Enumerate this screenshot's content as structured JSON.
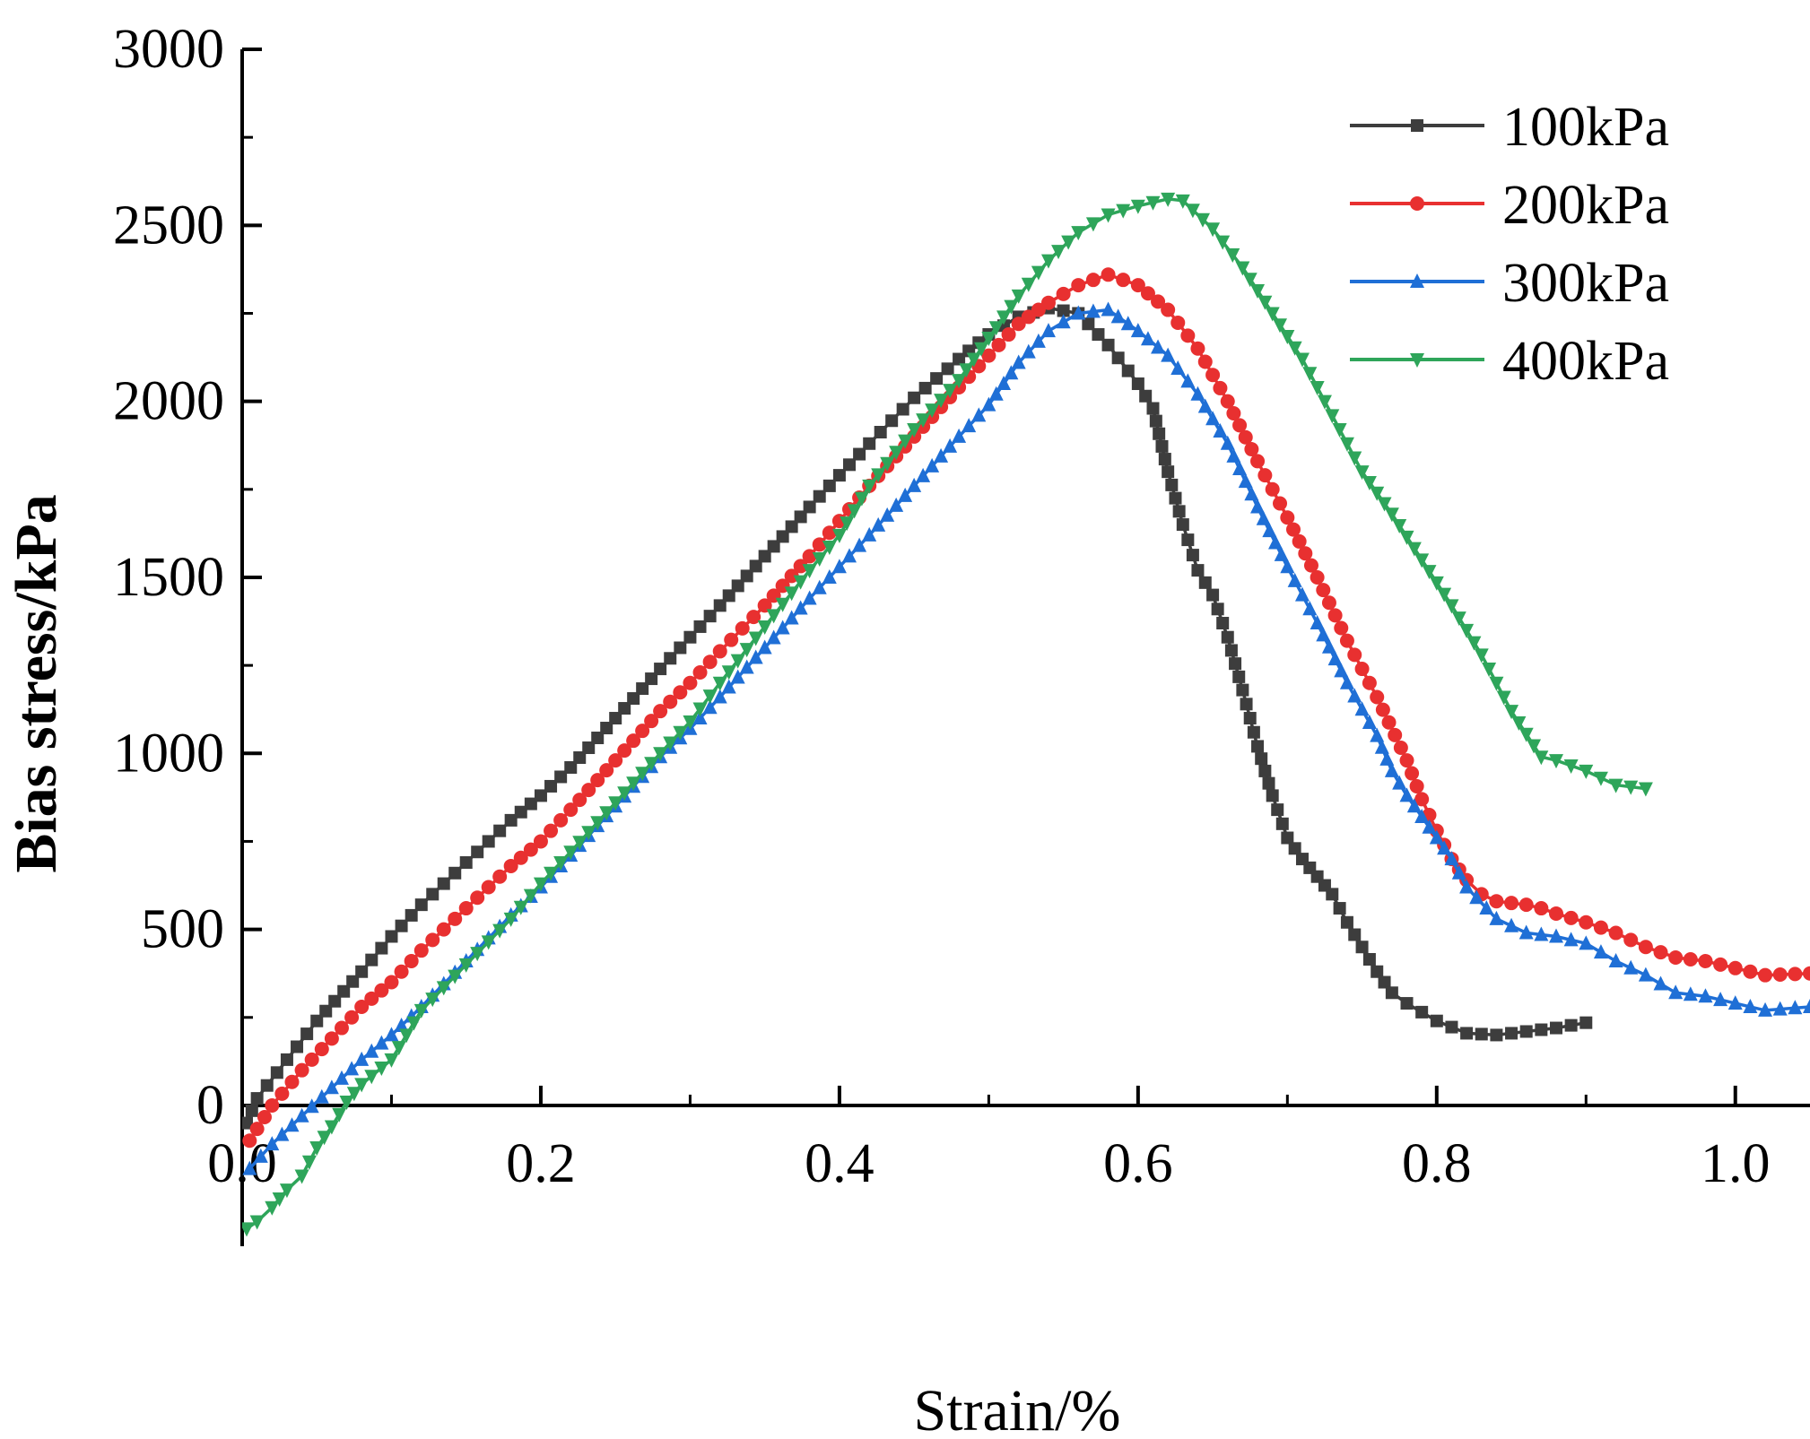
{
  "chart_data": {
    "type": "line",
    "title": "",
    "xlabel": "Strain/%",
    "ylabel": "Bias stress/kPa",
    "xlim": [
      0,
      1.05
    ],
    "ylim": [
      -400,
      3000
    ],
    "x_ticks": [
      0.0,
      0.2,
      0.4,
      0.6,
      0.8,
      1.0
    ],
    "x_tick_labels": [
      "0.0",
      "0.2",
      "0.4",
      "0.6",
      "0.8",
      "1.0"
    ],
    "y_ticks": [
      0,
      500,
      1000,
      1500,
      2000,
      2500,
      3000
    ],
    "y_tick_labels": [
      "0",
      "500",
      "1000",
      "1500",
      "2000",
      "2500",
      "3000"
    ],
    "grid": false,
    "legend_position": "top-right",
    "series": [
      {
        "name": "100kPa",
        "color": "#3d3d3d",
        "marker": "square",
        "x": [
          0.003,
          0.01,
          0.03,
          0.05,
          0.08,
          0.1,
          0.12,
          0.15,
          0.18,
          0.2,
          0.22,
          0.25,
          0.28,
          0.3,
          0.32,
          0.35,
          0.38,
          0.4,
          0.42,
          0.45,
          0.48,
          0.5,
          0.52,
          0.54,
          0.56,
          0.58,
          0.6,
          0.61,
          0.62,
          0.63,
          0.64,
          0.65,
          0.66,
          0.67,
          0.68,
          0.69,
          0.7,
          0.71,
          0.72,
          0.73,
          0.74,
          0.75,
          0.76,
          0.77,
          0.78,
          0.8,
          0.82,
          0.84,
          0.86,
          0.88,
          0.9
        ],
        "y": [
          -50,
          20,
          130,
          240,
          380,
          480,
          570,
          690,
          810,
          880,
          960,
          1100,
          1240,
          1330,
          1420,
          1560,
          1700,
          1790,
          1880,
          2010,
          2120,
          2190,
          2240,
          2265,
          2250,
          2160,
          2050,
          1980,
          1800,
          1650,
          1520,
          1450,
          1330,
          1180,
          1020,
          880,
          760,
          700,
          650,
          600,
          520,
          450,
          380,
          320,
          290,
          240,
          205,
          200,
          210,
          220,
          235
        ]
      },
      {
        "name": "200kPa",
        "color": "#e83030",
        "marker": "circle",
        "x": [
          0.005,
          0.02,
          0.04,
          0.06,
          0.08,
          0.1,
          0.12,
          0.15,
          0.18,
          0.2,
          0.22,
          0.25,
          0.28,
          0.3,
          0.32,
          0.35,
          0.38,
          0.4,
          0.42,
          0.45,
          0.48,
          0.5,
          0.52,
          0.54,
          0.56,
          0.58,
          0.6,
          0.62,
          0.64,
          0.66,
          0.68,
          0.7,
          0.72,
          0.74,
          0.76,
          0.78,
          0.79,
          0.8,
          0.81,
          0.82,
          0.83,
          0.84,
          0.85,
          0.86,
          0.87,
          0.88,
          0.9,
          0.92,
          0.94,
          0.96,
          0.98,
          1.0,
          1.02,
          1.05
        ],
        "y": [
          -100,
          0,
          100,
          190,
          280,
          350,
          440,
          560,
          680,
          750,
          840,
          980,
          1120,
          1200,
          1290,
          1420,
          1560,
          1660,
          1760,
          1900,
          2040,
          2130,
          2220,
          2280,
          2330,
          2360,
          2330,
          2260,
          2150,
          2000,
          1830,
          1670,
          1500,
          1320,
          1160,
          980,
          870,
          780,
          700,
          640,
          600,
          580,
          575,
          570,
          560,
          545,
          520,
          490,
          450,
          420,
          410,
          390,
          370,
          375
        ]
      },
      {
        "name": "300kPa",
        "color": "#1f6fd6",
        "marker": "triangle-up",
        "x": [
          0.005,
          0.02,
          0.04,
          0.06,
          0.08,
          0.1,
          0.12,
          0.15,
          0.18,
          0.2,
          0.22,
          0.25,
          0.28,
          0.3,
          0.32,
          0.35,
          0.38,
          0.4,
          0.42,
          0.45,
          0.48,
          0.5,
          0.52,
          0.54,
          0.56,
          0.58,
          0.6,
          0.62,
          0.64,
          0.66,
          0.68,
          0.7,
          0.72,
          0.74,
          0.76,
          0.77,
          0.78,
          0.79,
          0.8,
          0.81,
          0.82,
          0.84,
          0.86,
          0.88,
          0.9,
          0.92,
          0.94,
          0.96,
          0.98,
          1.0,
          1.02,
          1.05
        ],
        "y": [
          -180,
          -110,
          -30,
          50,
          130,
          200,
          280,
          410,
          540,
          620,
          710,
          850,
          990,
          1070,
          1160,
          1300,
          1440,
          1530,
          1620,
          1760,
          1900,
          1990,
          2110,
          2200,
          2250,
          2260,
          2200,
          2130,
          2020,
          1880,
          1700,
          1530,
          1370,
          1200,
          1050,
          950,
          880,
          820,
          760,
          700,
          620,
          530,
          490,
          480,
          460,
          410,
          370,
          320,
          310,
          290,
          270,
          280
        ]
      },
      {
        "name": "400kPa",
        "color": "#2ea55a",
        "marker": "triangle-down",
        "x": [
          0.003,
          0.01,
          0.02,
          0.03,
          0.04,
          0.05,
          0.06,
          0.07,
          0.08,
          0.1,
          0.12,
          0.15,
          0.18,
          0.2,
          0.22,
          0.25,
          0.28,
          0.3,
          0.32,
          0.35,
          0.38,
          0.4,
          0.42,
          0.45,
          0.48,
          0.5,
          0.52,
          0.54,
          0.56,
          0.58,
          0.6,
          0.62,
          0.63,
          0.65,
          0.67,
          0.69,
          0.71,
          0.73,
          0.75,
          0.77,
          0.79,
          0.81,
          0.83,
          0.85,
          0.87,
          0.88,
          0.9,
          0.92,
          0.94
        ],
        "y": [
          -350,
          -330,
          -290,
          -240,
          -200,
          -120,
          -60,
          10,
          60,
          130,
          270,
          400,
          530,
          630,
          720,
          860,
          1000,
          1090,
          1200,
          1360,
          1520,
          1620,
          1760,
          1920,
          2060,
          2180,
          2300,
          2400,
          2480,
          2530,
          2555,
          2575,
          2570,
          2490,
          2380,
          2250,
          2120,
          1960,
          1800,
          1680,
          1550,
          1420,
          1280,
          1120,
          990,
          980,
          950,
          910,
          900
        ]
      }
    ]
  }
}
